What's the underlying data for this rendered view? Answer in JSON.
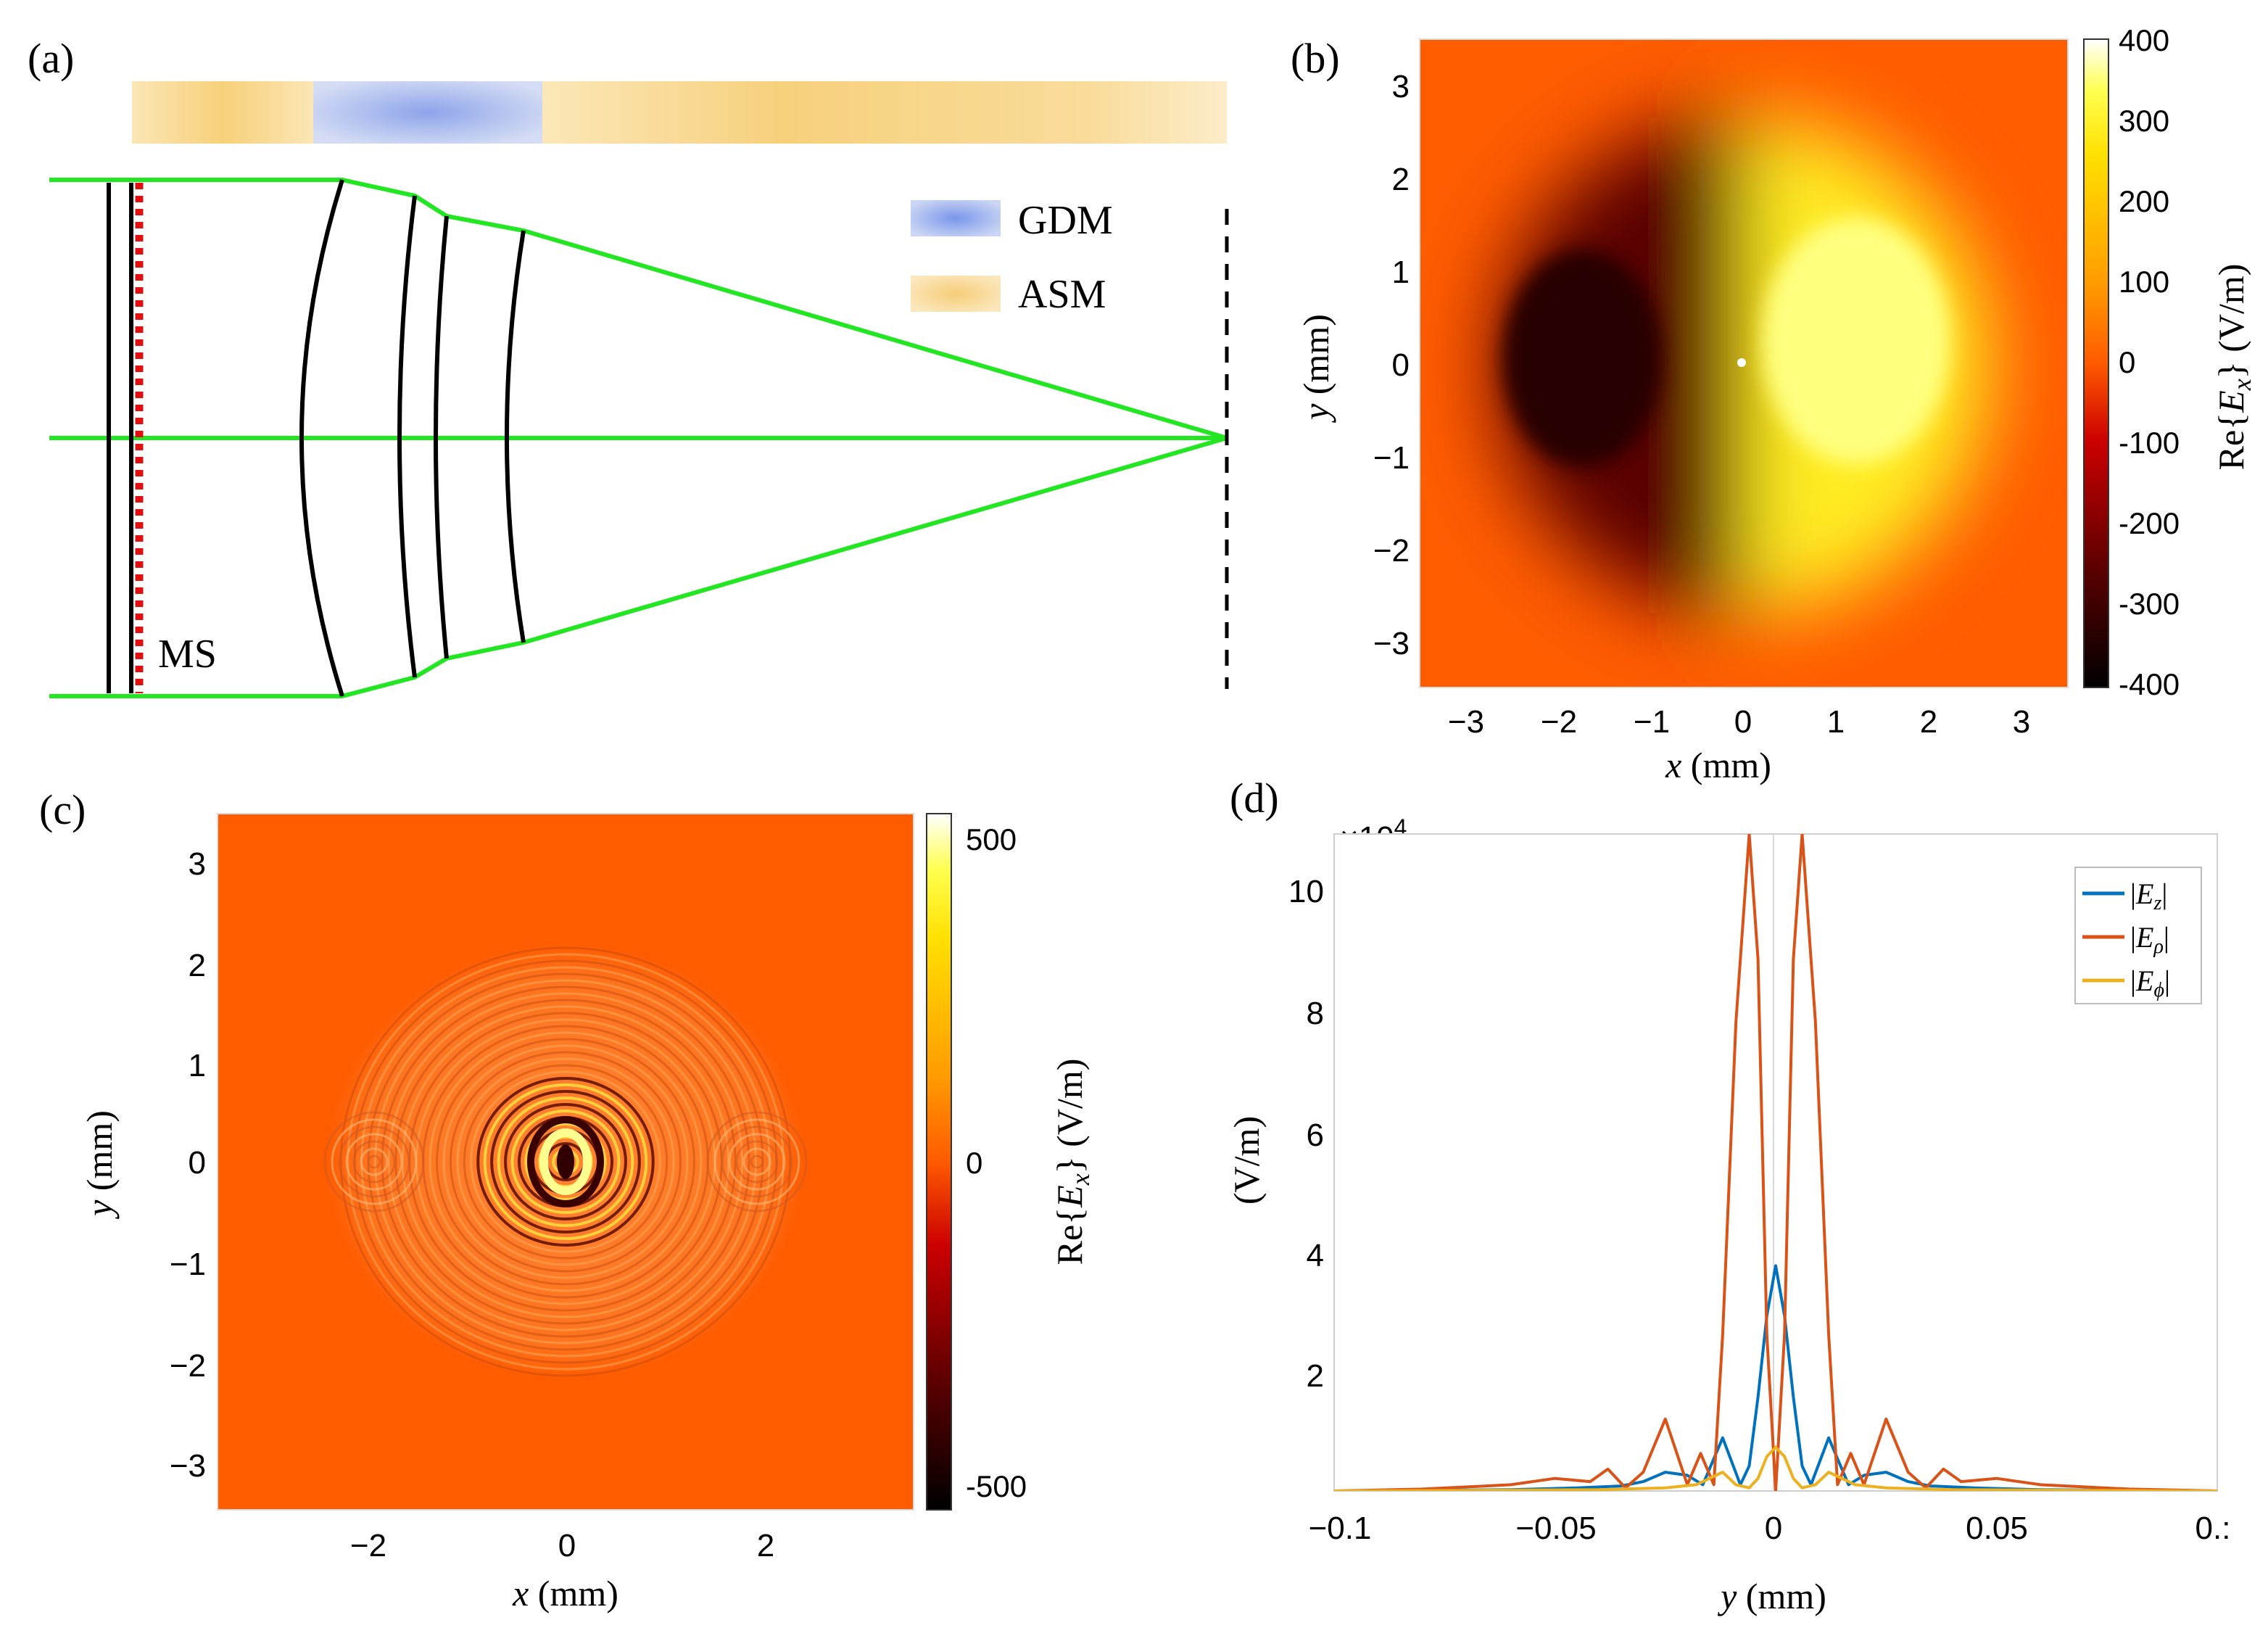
{
  "panels": {
    "a": {
      "label": "(a)",
      "legend": [
        {
          "name": "GDM",
          "color": "#8fa6e6"
        },
        {
          "name": "ASM",
          "color": "#f8d488"
        }
      ],
      "ms_label": "MS",
      "colors": {
        "rays": "#22e622",
        "lens": "#000000",
        "metasurface": "#e01010"
      }
    },
    "b": {
      "label": "(b)",
      "colorbar": {
        "ticks": [
          400,
          300,
          200,
          100,
          0,
          -100,
          -200,
          -300,
          -400
        ],
        "label_pre": "Re{",
        "label_var": "E",
        "label_sub": "x",
        "label_post": "} (V/m)"
      },
      "x_ticks": [
        "−3",
        "−2",
        "−1",
        "0",
        "1",
        "2",
        "3"
      ],
      "y_ticks": [
        "3",
        "2",
        "1",
        "0",
        "−1",
        "−2",
        "−3"
      ],
      "xlabel_var": "x",
      "xlabel_unit": "(mm)",
      "ylabel_var": "y",
      "ylabel_unit": "(mm)"
    },
    "c": {
      "label": "(c)",
      "colorbar": {
        "ticks": [
          "500",
          "0",
          "-500"
        ],
        "label_pre": "Re{",
        "label_var": "E",
        "label_sub": "x",
        "label_post": "} (V/m)"
      },
      "x_ticks": [
        "−2",
        "0",
        "2"
      ],
      "y_ticks": [
        "3",
        "2",
        "1",
        "0",
        "−1",
        "−2",
        "−3"
      ],
      "xlabel_var": "x",
      "xlabel_unit": "(mm)",
      "ylabel_var": "y",
      "ylabel_unit": "(mm)"
    },
    "d": {
      "label": "(d)",
      "exponent_prefix": "×10",
      "exponent_power": "4",
      "x_ticks": [
        "−0.1",
        "−0.05",
        "0",
        "0.05",
        "0.:"
      ],
      "y_ticks": [
        "10",
        "8",
        "6",
        "4",
        "2"
      ],
      "xlabel_var": "y",
      "xlabel_unit": "(mm)",
      "ylabel": "(V/m)"
    }
  },
  "chart_data": [
    {
      "panel": "b",
      "type": "heatmap",
      "title": "",
      "xlabel": "x (mm)",
      "ylabel": "y (mm)",
      "xlim": [
        -3.5,
        3.5
      ],
      "ylim": [
        -3.5,
        3.5
      ],
      "clim": [
        -400,
        400
      ],
      "description_values": {
        "beam_radius_mm": 3,
        "peak_positive": 350,
        "peak_negative": -350
      }
    },
    {
      "panel": "c",
      "type": "heatmap",
      "title": "",
      "xlabel": "x (mm)",
      "ylabel": "y (mm)",
      "xlim": [
        -3.5,
        3.5
      ],
      "ylim": [
        -3.5,
        3.5
      ],
      "clim": [
        -550,
        550
      ],
      "description_values": {
        "pattern_radius_mm": 2.4,
        "lobe_centers_mm": [
          -2,
          2
        ]
      }
    },
    {
      "panel": "d",
      "type": "line",
      "xlabel": "y (mm)",
      "ylabel": "(V/m)",
      "xlim": [
        -0.1,
        0.1
      ],
      "ylim": [
        0,
        10.5
      ],
      "y_scale": 10000,
      "series": [
        {
          "name": "|E_z|",
          "color": "#0072bd",
          "x": [
            -0.1,
            -0.06,
            -0.045,
            -0.035,
            -0.03,
            -0.025,
            -0.02,
            -0.0165,
            -0.012,
            -0.008,
            -0.006,
            -0.004,
            -0.002,
            0,
            0.002,
            0.004,
            0.006,
            0.008,
            0.012,
            0.0165,
            0.02,
            0.025,
            0.03,
            0.035,
            0.045,
            0.06,
            0.1
          ],
          "y": [
            0,
            0.02,
            0.05,
            0.08,
            0.15,
            0.3,
            0.25,
            0.1,
            0.85,
            0.1,
            0.4,
            1.5,
            2.8,
            3.6,
            2.8,
            1.5,
            0.4,
            0.1,
            0.85,
            0.1,
            0.25,
            0.3,
            0.15,
            0.08,
            0.05,
            0.02,
            0
          ]
        },
        {
          "name": "|E_ρ|",
          "color": "#d95319",
          "x": [
            -0.1,
            -0.08,
            -0.06,
            -0.05,
            -0.042,
            -0.038,
            -0.034,
            -0.03,
            -0.025,
            -0.02,
            -0.017,
            -0.014,
            -0.012,
            -0.009,
            -0.006,
            -0.004,
            -0.002,
            0,
            0.002,
            0.004,
            0.006,
            0.009,
            0.012,
            0.014,
            0.017,
            0.02,
            0.025,
            0.03,
            0.034,
            0.038,
            0.042,
            0.05,
            0.06,
            0.08,
            0.1
          ],
          "y": [
            0,
            0.03,
            0.1,
            0.2,
            0.15,
            0.35,
            0.05,
            0.3,
            1.15,
            0.1,
            0.6,
            0.1,
            2.5,
            7.5,
            10.5,
            8.5,
            2.5,
            0,
            2.5,
            8.5,
            10.5,
            7.5,
            2.5,
            0.1,
            0.6,
            0.1,
            1.15,
            0.3,
            0.05,
            0.35,
            0.15,
            0.2,
            0.1,
            0.03,
            0
          ]
        },
        {
          "name": "|E_ϕ|",
          "color": "#edb120",
          "x": [
            -0.1,
            -0.04,
            -0.025,
            -0.018,
            -0.012,
            -0.009,
            -0.006,
            -0.004,
            -0.002,
            0,
            0.002,
            0.004,
            0.006,
            0.009,
            0.012,
            0.018,
            0.025,
            0.04,
            0.1
          ],
          "y": [
            0,
            0.02,
            0.05,
            0.1,
            0.3,
            0.1,
            0.05,
            0.2,
            0.55,
            0.7,
            0.55,
            0.2,
            0.05,
            0.1,
            0.3,
            0.1,
            0.05,
            0.02,
            0
          ]
        }
      ]
    }
  ]
}
